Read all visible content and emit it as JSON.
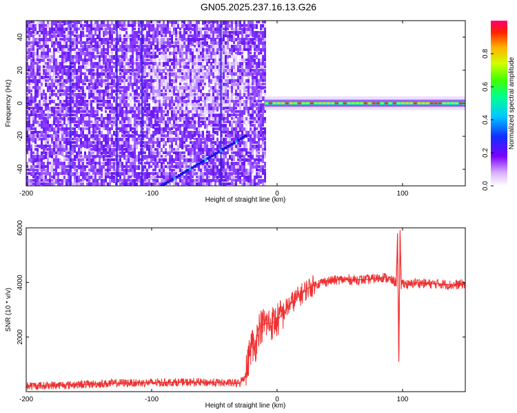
{
  "title": "GN05.2025.237.16.13.G26",
  "chart_data": [
    {
      "type": "heatmap",
      "title": "",
      "xlabel": "Height of straight line (km)",
      "ylabel": "Frequency (Hz)",
      "xlim": [
        -200,
        150
      ],
      "ylim": [
        -50,
        50
      ],
      "xticks": [
        -200,
        -100,
        0,
        100
      ],
      "yticks": [
        -40,
        -20,
        0,
        20,
        40
      ],
      "description_regions": [
        {
          "x_range": [
            -200,
            -10
          ],
          "content": "broadband noise (low-mid amplitude)"
        },
        {
          "x_range": [
            -10,
            150
          ],
          "content": "narrow carrier near 0 Hz (high amplitude)"
        }
      ],
      "colorbar": {
        "label": "Normalized spectral amplitude",
        "range": [
          0.0,
          1.0
        ],
        "ticks": [
          0.0,
          0.2,
          0.4,
          0.6,
          0.8
        ]
      }
    },
    {
      "type": "line",
      "title": "",
      "xlabel": "Height of straight line (km)",
      "ylabel": "SNR (10 * v/v)",
      "xlim": [
        -200,
        150
      ],
      "ylim": [
        0,
        6000
      ],
      "xticks": [
        -200,
        -100,
        0,
        100
      ],
      "yticks": [
        2000,
        4000,
        6000
      ],
      "series": [
        {
          "name": "SNR",
          "color": "#ef3030",
          "x": [
            -200,
            -180,
            -160,
            -140,
            -120,
            -100,
            -80,
            -60,
            -40,
            -30,
            -25,
            -22,
            -20,
            -18,
            -15,
            -10,
            -5,
            0,
            5,
            10,
            15,
            20,
            25,
            30,
            35,
            40,
            50,
            60,
            70,
            80,
            85,
            90,
            95,
            96,
            97,
            98,
            99,
            100,
            105,
            110,
            120,
            130,
            140,
            150
          ],
          "values": [
            200,
            230,
            260,
            290,
            320,
            330,
            340,
            340,
            320,
            300,
            600,
            1400,
            1800,
            1500,
            2300,
            2500,
            2500,
            2600,
            2900,
            3200,
            3400,
            3600,
            3800,
            3900,
            4000,
            4050,
            4100,
            4100,
            4100,
            4150,
            4200,
            4100,
            4000,
            5800,
            1100,
            5800,
            3900,
            4000,
            3900,
            4000,
            3950,
            3950,
            3900,
            3950
          ]
        }
      ]
    }
  ]
}
